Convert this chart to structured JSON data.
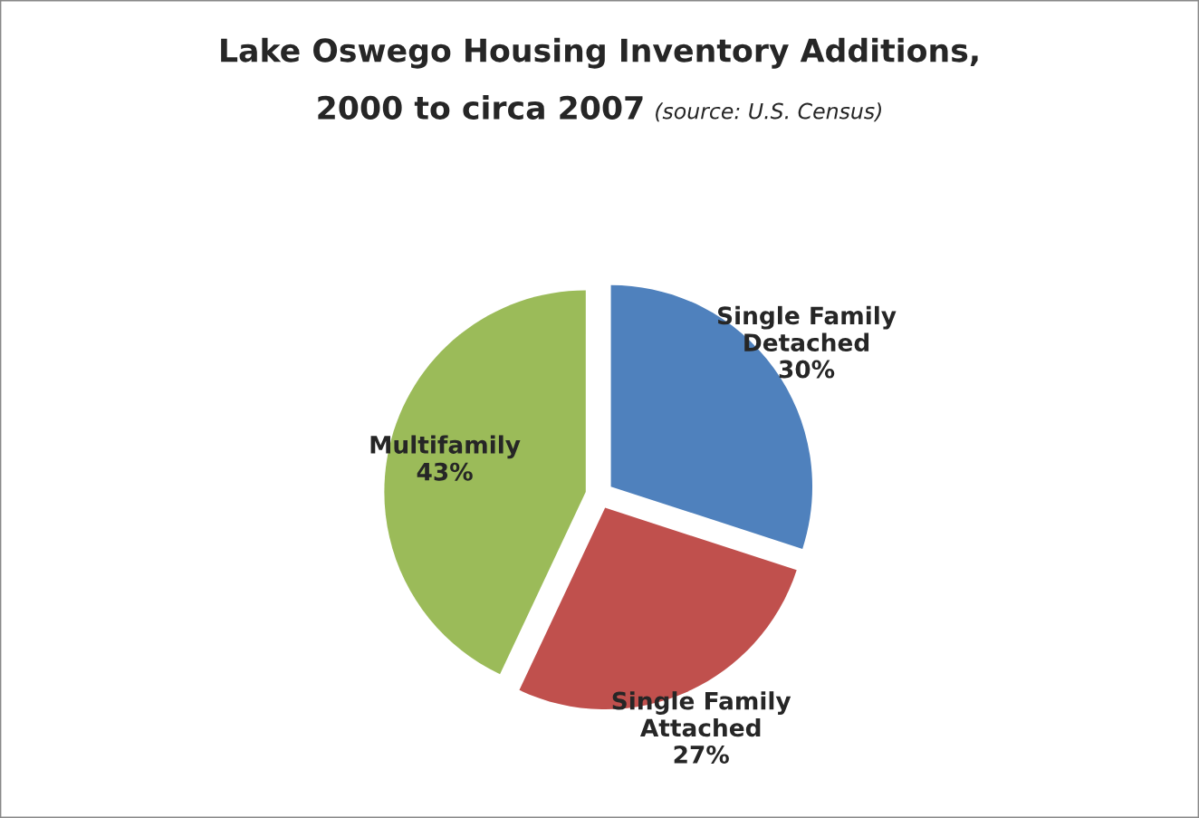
{
  "chart_data": {
    "type": "pie",
    "title": "Lake Oswego Housing Inventory Additions,\n2000 to circa 2007",
    "annotations": [
      "(source: U.S. Census)"
    ],
    "categories": [
      "Single Family\nDetached",
      "Single Family\nAttached",
      "Multifamily"
    ],
    "values": [
      30,
      27,
      43
    ],
    "value_labels": [
      "30%",
      "27%",
      "43%"
    ],
    "colors": [
      "#4f81bd",
      "#c0504d",
      "#9bbb59"
    ],
    "legend": false
  }
}
